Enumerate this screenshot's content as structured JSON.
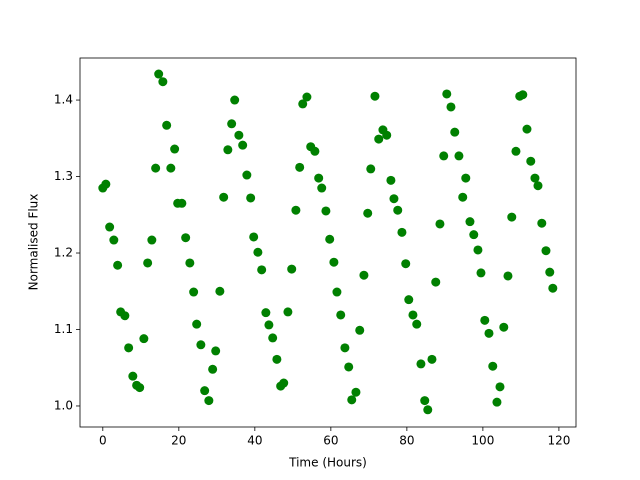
{
  "chart_data": {
    "type": "scatter",
    "xlabel": "Time (Hours)",
    "ylabel": "Normalised Flux",
    "color": "#008000",
    "x": [
      0,
      0.8,
      1.8,
      2.9,
      3.9,
      4.7,
      5.8,
      6.8,
      7.9,
      8.9,
      9.7,
      10.8,
      11.8,
      12.9,
      13.9,
      14.7,
      15.8,
      16.8,
      17.9,
      18.9,
      19.7,
      20.8,
      21.8,
      22.9,
      23.9,
      24.7,
      25.8,
      26.8,
      27.9,
      28.9,
      29.7,
      30.8,
      31.8,
      32.9,
      33.9,
      34.7,
      35.8,
      36.8,
      37.9,
      38.9,
      39.7,
      40.8,
      41.8,
      42.9,
      43.7,
      44.7,
      45.8,
      46.8,
      47.6,
      48.7,
      49.7,
      50.8,
      51.8,
      52.6,
      53.7,
      54.7,
      55.8,
      56.8,
      57.6,
      58.7,
      59.7,
      60.8,
      61.6,
      62.6,
      63.7,
      64.7,
      65.5,
      66.6,
      67.6,
      68.7,
      69.7,
      70.5,
      71.6,
      72.6,
      73.7,
      74.7,
      75.8,
      76.6,
      77.6,
      78.7,
      79.7,
      80.5,
      81.6,
      82.6,
      83.7,
      84.7,
      85.5,
      86.6,
      87.6,
      88.7,
      89.7,
      90.5,
      91.6,
      92.6,
      93.7,
      94.7,
      95.5,
      96.6,
      97.6,
      98.7,
      99.5,
      100.5,
      101.6,
      102.6,
      103.7,
      104.5,
      105.5,
      106.6,
      107.6,
      108.7,
      109.7,
      110.5,
      111.6,
      112.6,
      113.7,
      114.5,
      115.5,
      116.6,
      117.6,
      118.4
    ],
    "values": [
      1.285,
      1.29,
      1.234,
      1.217,
      1.184,
      1.123,
      1.118,
      1.076,
      1.039,
      1.027,
      1.024,
      1.088,
      1.187,
      1.217,
      1.311,
      1.434,
      1.424,
      1.367,
      1.311,
      1.336,
      1.265,
      1.265,
      1.22,
      1.187,
      1.149,
      1.107,
      1.08,
      1.02,
      1.007,
      1.048,
      1.072,
      1.15,
      1.273,
      1.335,
      1.369,
      1.4,
      1.354,
      1.341,
      1.302,
      1.272,
      1.221,
      1.201,
      1.178,
      1.122,
      1.106,
      1.089,
      1.061,
      1.026,
      1.03,
      1.123,
      1.179,
      1.256,
      1.312,
      1.395,
      1.404,
      1.339,
      1.333,
      1.298,
      1.285,
      1.255,
      1.218,
      1.188,
      1.149,
      1.119,
      1.076,
      1.051,
      1.008,
      1.018,
      1.099,
      1.171,
      1.252,
      1.31,
      1.405,
      1.349,
      1.361,
      1.354,
      1.295,
      1.271,
      1.256,
      1.227,
      1.186,
      1.139,
      1.119,
      1.107,
      1.055,
      1.007,
      0.995,
      1.061,
      1.162,
      1.238,
      1.327,
      1.408,
      1.391,
      1.358,
      1.327,
      1.273,
      1.298,
      1.241,
      1.224,
      1.204,
      1.174,
      1.112,
      1.095,
      1.052,
      1.005,
      1.025,
      1.103,
      1.17,
      1.247,
      1.333,
      1.405,
      1.407,
      1.362,
      1.32,
      1.298,
      1.288,
      1.239,
      1.203,
      1.175,
      1.154
    ],
    "xlim": [
      -6,
      124.5
    ],
    "xticks": [
      0,
      20,
      40,
      60,
      80,
      100,
      120
    ],
    "ylim": [
      0.9725,
      1.455
    ],
    "yticks": [
      {
        "value": 1,
        "label": "1.0"
      },
      1.1,
      1.2,
      1.3,
      1.4
    ]
  }
}
